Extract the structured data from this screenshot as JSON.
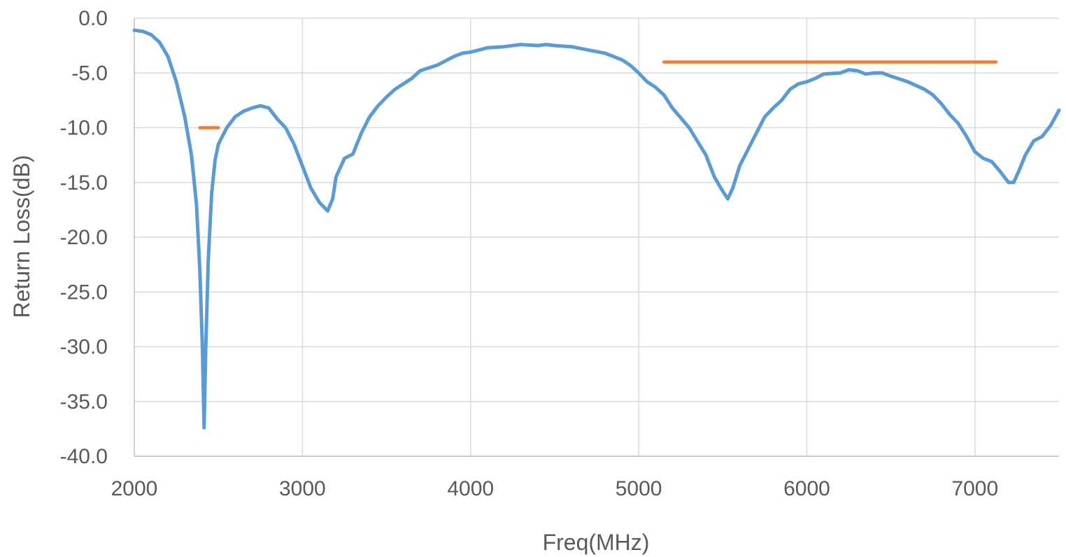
{
  "chart_data": {
    "type": "line",
    "title": "",
    "xlabel": "Freq(MHz)",
    "ylabel": "Return Loss(dB)",
    "xlim": [
      2000,
      7500
    ],
    "ylim": [
      -40,
      0
    ],
    "x_ticks": [
      "2000",
      "3000",
      "4000",
      "5000",
      "6000",
      "7000"
    ],
    "y_ticks": [
      "0.0",
      "-5.0",
      "-10.0",
      "-15.0",
      "-20.0",
      "-25.0",
      "-30.0",
      "-35.0",
      "-40.0"
    ],
    "grid": true,
    "legend": "none",
    "series": [
      {
        "color": "#5b9bd5",
        "points": [
          [
            2000,
            -1.1
          ],
          [
            2050,
            -1.2
          ],
          [
            2100,
            -1.5
          ],
          [
            2150,
            -2.2
          ],
          [
            2200,
            -3.5
          ],
          [
            2250,
            -5.8
          ],
          [
            2300,
            -9.0
          ],
          [
            2340,
            -12.5
          ],
          [
            2370,
            -17.0
          ],
          [
            2390,
            -23.0
          ],
          [
            2405,
            -30.0
          ],
          [
            2415,
            -37.4
          ],
          [
            2425,
            -30.0
          ],
          [
            2440,
            -22.0
          ],
          [
            2460,
            -16.0
          ],
          [
            2480,
            -13.0
          ],
          [
            2500,
            -11.5
          ],
          [
            2550,
            -10.0
          ],
          [
            2600,
            -9.0
          ],
          [
            2650,
            -8.5
          ],
          [
            2700,
            -8.2
          ],
          [
            2750,
            -8.0
          ],
          [
            2800,
            -8.2
          ],
          [
            2850,
            -9.2
          ],
          [
            2900,
            -10.0
          ],
          [
            2950,
            -11.5
          ],
          [
            3000,
            -13.5
          ],
          [
            3050,
            -15.5
          ],
          [
            3100,
            -16.8
          ],
          [
            3150,
            -17.6
          ],
          [
            3180,
            -16.5
          ],
          [
            3200,
            -14.5
          ],
          [
            3250,
            -12.8
          ],
          [
            3300,
            -12.4
          ],
          [
            3350,
            -10.5
          ],
          [
            3400,
            -9.0
          ],
          [
            3450,
            -8.0
          ],
          [
            3500,
            -7.2
          ],
          [
            3550,
            -6.5
          ],
          [
            3600,
            -6.0
          ],
          [
            3650,
            -5.5
          ],
          [
            3700,
            -4.8
          ],
          [
            3800,
            -4.3
          ],
          [
            3900,
            -3.5
          ],
          [
            3950,
            -3.2
          ],
          [
            4000,
            -3.1
          ],
          [
            4100,
            -2.7
          ],
          [
            4200,
            -2.6
          ],
          [
            4300,
            -2.4
          ],
          [
            4400,
            -2.5
          ],
          [
            4450,
            -2.4
          ],
          [
            4500,
            -2.5
          ],
          [
            4600,
            -2.6
          ],
          [
            4700,
            -2.9
          ],
          [
            4800,
            -3.2
          ],
          [
            4900,
            -3.8
          ],
          [
            4950,
            -4.3
          ],
          [
            5000,
            -5.0
          ],
          [
            5050,
            -5.8
          ],
          [
            5100,
            -6.3
          ],
          [
            5150,
            -7.0
          ],
          [
            5200,
            -8.2
          ],
          [
            5300,
            -10.0
          ],
          [
            5400,
            -12.5
          ],
          [
            5450,
            -14.5
          ],
          [
            5500,
            -15.8
          ],
          [
            5530,
            -16.5
          ],
          [
            5560,
            -15.5
          ],
          [
            5600,
            -13.5
          ],
          [
            5650,
            -12.0
          ],
          [
            5700,
            -10.5
          ],
          [
            5750,
            -9.0
          ],
          [
            5800,
            -8.2
          ],
          [
            5850,
            -7.5
          ],
          [
            5900,
            -6.5
          ],
          [
            5950,
            -6.0
          ],
          [
            6000,
            -5.8
          ],
          [
            6050,
            -5.5
          ],
          [
            6100,
            -5.1
          ],
          [
            6200,
            -5.0
          ],
          [
            6250,
            -4.7
          ],
          [
            6300,
            -4.8
          ],
          [
            6350,
            -5.1
          ],
          [
            6400,
            -5.0
          ],
          [
            6450,
            -5.0
          ],
          [
            6500,
            -5.3
          ],
          [
            6600,
            -5.8
          ],
          [
            6700,
            -6.5
          ],
          [
            6750,
            -7.0
          ],
          [
            6800,
            -7.8
          ],
          [
            6850,
            -8.8
          ],
          [
            6900,
            -9.6
          ],
          [
            6950,
            -10.8
          ],
          [
            7000,
            -12.2
          ],
          [
            7050,
            -12.8
          ],
          [
            7100,
            -13.1
          ],
          [
            7150,
            -14.0
          ],
          [
            7200,
            -15.0
          ],
          [
            7230,
            -15.0
          ],
          [
            7260,
            -14.0
          ],
          [
            7300,
            -12.5
          ],
          [
            7350,
            -11.2
          ],
          [
            7400,
            -10.8
          ],
          [
            7450,
            -9.8
          ],
          [
            7500,
            -8.4
          ]
        ]
      },
      {
        "color": "#ed7d31",
        "points": [
          [
            2390,
            -10.0
          ],
          [
            2500,
            -10.0
          ]
        ]
      },
      {
        "color": "#ed7d31",
        "points": [
          [
            5150,
            -4.0
          ],
          [
            7125,
            -4.0
          ]
        ]
      }
    ]
  }
}
